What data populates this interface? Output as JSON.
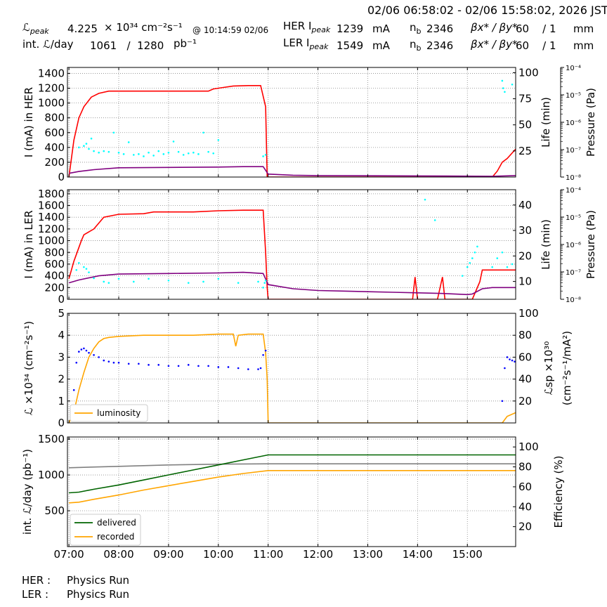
{
  "header": {
    "range": "02/06 06:58:02 - 02/06 15:58:02, 2026 JST",
    "lpeak_label": "ℒ",
    "lpeak_sub": "peak",
    "lpeak_value": "4.225",
    "lpeak_unit": "× 10³⁴ cm⁻²s⁻¹",
    "lpeak_time": "@ 10:14:59 02/06",
    "intl_label": "int. ℒ/day",
    "intl_values": "1061   /  1280",
    "intl_unit": "pb⁻¹",
    "her_label": "HER I",
    "her_sub": "peak",
    "her_value": "1239",
    "her_unit": "mA",
    "her_nb_label": "n",
    "her_nb_sub": "b",
    "her_nb_value": "2346",
    "her_beta_label": "βx* / βy*",
    "her_beta_values": "60    / 1",
    "her_beta_unit": "mm",
    "ler_label": "LER I",
    "ler_sub": "peak",
    "ler_value": "1549",
    "ler_unit": "mA",
    "ler_nb_label": "n",
    "ler_nb_sub": "b",
    "ler_nb_value": "2346",
    "ler_beta_label": "βx* / βy*",
    "ler_beta_values": "60    / 1",
    "ler_beta_unit": "mm"
  },
  "footer": {
    "her_label": "HER :",
    "her_status": "Physics Run",
    "ler_label": "LER :",
    "ler_status": "Physics Run"
  },
  "chart_data": [
    {
      "type": "line",
      "id": "her",
      "ylabel": "I (mA) in HER",
      "ylim": [
        0,
        1480
      ],
      "yticks": [
        0,
        200,
        400,
        600,
        800,
        1000,
        1200,
        1400
      ],
      "y2label": "Life (min)",
      "y2lim": [
        0,
        105
      ],
      "y2ticks": [
        25,
        50,
        75,
        100
      ],
      "y3label": "Pressure (Pa)",
      "y3ticks": [
        "10⁻⁸",
        "10⁻⁷",
        "10⁻⁶",
        "10⁻⁵",
        "10⁻⁴"
      ],
      "grid": true,
      "series": [
        {
          "axis": "y",
          "color": "#ff0000",
          "x": [
            7.0,
            7.1,
            7.2,
            7.3,
            7.45,
            7.6,
            7.8,
            8.0,
            8.5,
            9.0,
            9.5,
            9.8,
            9.9,
            10.1,
            10.3,
            10.6,
            10.85,
            10.95,
            10.97,
            10.98,
            11.0,
            12.0,
            13.0,
            14.0,
            15.0,
            15.5,
            15.6,
            15.7,
            15.8,
            16.0
          ],
          "y": [
            0,
            500,
            800,
            950,
            1080,
            1130,
            1160,
            1160,
            1160,
            1160,
            1160,
            1160,
            1190,
            1210,
            1230,
            1235,
            1235,
            950,
            300,
            0,
            0,
            0,
            0,
            0,
            0,
            0,
            80,
            200,
            250,
            400
          ]
        },
        {
          "axis": "y",
          "color": "#800080",
          "x": [
            7.0,
            7.2,
            7.5,
            8.0,
            9.0,
            10.0,
            10.5,
            10.9,
            11.0,
            11.5,
            12.0,
            14.0,
            15.5,
            16.0
          ],
          "y": [
            50,
            75,
            100,
            125,
            130,
            135,
            140,
            140,
            40,
            25,
            20,
            15,
            10,
            20
          ]
        },
        {
          "axis": "y",
          "color": "#00ffff",
          "kind": "scatter",
          "x": [
            7.2,
            7.3,
            7.35,
            7.4,
            7.45,
            7.5,
            7.6,
            7.7,
            7.8,
            7.9,
            8.0,
            8.1,
            8.2,
            8.3,
            8.4,
            8.5,
            8.6,
            8.7,
            8.8,
            8.9,
            9.0,
            9.1,
            9.2,
            9.3,
            9.4,
            9.5,
            9.6,
            9.7,
            9.8,
            9.9,
            10.0,
            10.9,
            10.95,
            15.7,
            15.72,
            15.75,
            15.9
          ],
          "y": [
            400,
            420,
            450,
            380,
            520,
            350,
            330,
            350,
            340,
            600,
            330,
            310,
            470,
            300,
            310,
            280,
            330,
            290,
            350,
            310,
            330,
            480,
            340,
            300,
            320,
            330,
            310,
            600,
            340,
            320,
            500,
            280,
            300,
            1300,
            1200,
            1150,
            1250
          ]
        }
      ]
    },
    {
      "type": "line",
      "id": "ler",
      "ylabel": "I (mA) in LER",
      "ylim": [
        0,
        1870
      ],
      "yticks": [
        0,
        200,
        400,
        600,
        800,
        1000,
        1200,
        1400,
        1600,
        1800
      ],
      "y2label": "Life (min)",
      "y2lim": [
        3,
        46
      ],
      "y2ticks": [
        10,
        20,
        30,
        40
      ],
      "y3label": "Pressure (Pa)",
      "y3ticks": [
        "10⁻⁸",
        "10⁻⁷",
        "10⁻⁶",
        "10⁻⁵",
        "10⁻⁴"
      ],
      "grid": true,
      "series": [
        {
          "axis": "y",
          "color": "#ff0000",
          "x": [
            7.0,
            7.1,
            7.25,
            7.3,
            7.5,
            7.7,
            8.0,
            8.5,
            8.7,
            9.0,
            9.5,
            10.0,
            10.5,
            10.9,
            10.95,
            10.98,
            11.0,
            13.9,
            13.95,
            14.0,
            14.05,
            14.4,
            14.5,
            14.55,
            15.1,
            15.25,
            15.3,
            15.5,
            16.0
          ],
          "y": [
            350,
            650,
            1000,
            1100,
            1200,
            1400,
            1450,
            1460,
            1490,
            1490,
            1490,
            1510,
            1520,
            1520,
            800,
            200,
            0,
            0,
            380,
            0,
            0,
            0,
            380,
            0,
            0,
            300,
            500,
            500,
            500
          ]
        },
        {
          "axis": "y",
          "color": "#800080",
          "x": [
            7.0,
            7.2,
            7.6,
            8.0,
            9.0,
            10.0,
            10.5,
            10.9,
            11.0,
            11.5,
            12.0,
            12.5,
            13.0,
            13.5,
            14.0,
            14.5,
            15.0,
            15.1,
            15.3,
            15.5,
            16.0
          ],
          "y": [
            280,
            330,
            400,
            430,
            440,
            450,
            460,
            440,
            250,
            180,
            150,
            140,
            130,
            120,
            110,
            100,
            80,
            90,
            180,
            200,
            200
          ]
        },
        {
          "axis": "y",
          "color": "#00ffff",
          "kind": "scatter",
          "x": [
            7.15,
            7.2,
            7.3,
            7.35,
            7.4,
            7.5,
            7.7,
            7.8,
            8.0,
            8.3,
            8.6,
            9.0,
            9.4,
            9.7,
            10.0,
            10.4,
            10.8,
            10.9,
            10.93,
            10.95,
            14.15,
            14.35,
            14.9,
            15.0,
            15.05,
            15.1,
            15.15,
            15.2,
            15.5,
            15.6,
            15.7,
            15.8,
            15.9
          ],
          "y": [
            500,
            620,
            550,
            520,
            460,
            360,
            300,
            280,
            350,
            300,
            350,
            320,
            280,
            300,
            350,
            280,
            300,
            200,
            280,
            320,
            1700,
            1350,
            400,
            550,
            620,
            700,
            800,
            900,
            550,
            700,
            800,
            550,
            600
          ]
        }
      ]
    },
    {
      "type": "line",
      "id": "lumi",
      "ylabel": "ℒ ×10³⁴ (cm⁻²s⁻¹)",
      "ylim": [
        0,
        5
      ],
      "yticks": [
        0,
        1,
        2,
        3,
        4,
        5
      ],
      "y2label": "ℒsp ×10³⁰",
      "y2label2": "(cm⁻²s⁻¹/mA²)",
      "y2lim": [
        0,
        100
      ],
      "y2ticks": [
        20,
        40,
        60,
        80,
        100
      ],
      "grid": true,
      "legend": {
        "position": "lower-left",
        "entries": [
          {
            "name": "luminosity",
            "color": "#ffa500"
          }
        ]
      },
      "series": [
        {
          "axis": "y",
          "color": "#ffa500",
          "name": "luminosity",
          "x": [
            7.0,
            7.1,
            7.2,
            7.3,
            7.4,
            7.5,
            7.6,
            7.7,
            7.8,
            8.0,
            8.5,
            9.0,
            9.5,
            10.0,
            10.3,
            10.35,
            10.4,
            10.6,
            10.9,
            10.95,
            10.98,
            11.0,
            12.0,
            13.0,
            14.0,
            15.0,
            15.7,
            15.8,
            16.0
          ],
          "y": [
            0,
            0.5,
            1.5,
            2.3,
            3.0,
            3.4,
            3.7,
            3.85,
            3.9,
            3.95,
            4.0,
            4.0,
            4.0,
            4.05,
            4.05,
            3.5,
            4.0,
            4.05,
            4.05,
            3.2,
            2.0,
            0,
            0,
            0,
            0,
            0,
            0,
            0.3,
            0.5
          ]
        },
        {
          "axis": "y2",
          "color": "#0000ff",
          "kind": "scatter",
          "x": [
            7.05,
            7.1,
            7.15,
            7.2,
            7.25,
            7.3,
            7.35,
            7.4,
            7.5,
            7.6,
            7.7,
            7.8,
            7.9,
            8.0,
            8.2,
            8.4,
            8.6,
            8.8,
            9.0,
            9.2,
            9.4,
            9.6,
            9.8,
            10.0,
            10.2,
            10.4,
            10.6,
            10.8,
            10.85,
            10.9,
            10.95,
            15.7,
            15.75,
            15.8,
            15.85,
            15.9,
            15.95
          ],
          "y": [
            5,
            30,
            55,
            65,
            67,
            68,
            66,
            64,
            62,
            60,
            57,
            56,
            55,
            55,
            54,
            54,
            53,
            53,
            52,
            52,
            53,
            52,
            52,
            51,
            51,
            50,
            49,
            49,
            50,
            62,
            66,
            20,
            50,
            60,
            58,
            57,
            56
          ]
        }
      ]
    },
    {
      "type": "line",
      "id": "intlumi",
      "ylabel": "int. ℒ/day (pb⁻¹)",
      "ylim": [
        0,
        1530
      ],
      "yticks": [
        500,
        1000,
        1500
      ],
      "y2label": "Efficiency (%)",
      "y2lim": [
        0,
        110
      ],
      "y2ticks": [
        20,
        40,
        60,
        80,
        100
      ],
      "xlim": [
        6.97,
        15.97
      ],
      "xticks": [
        7,
        8,
        9,
        10,
        11,
        12,
        13,
        14,
        15
      ],
      "xticklabels": [
        "07:00",
        "08:00",
        "09:00",
        "10:00",
        "11:00",
        "12:00",
        "13:00",
        "14:00",
        "15:00"
      ],
      "grid": true,
      "legend": {
        "position": "lower-left",
        "entries": [
          {
            "name": "delivered",
            "color": "#006400"
          },
          {
            "name": "recorded",
            "color": "#ffa500"
          }
        ]
      },
      "series": [
        {
          "axis": "y",
          "color": "#808080",
          "name": "efficiency",
          "x": [
            7.0,
            8.0,
            9.0,
            10.0,
            11.0,
            12.0,
            13.0,
            14.0,
            15.0,
            16.0
          ],
          "y": [
            1100,
            1120,
            1140,
            1150,
            1155,
            1155,
            1155,
            1155,
            1155,
            1155
          ]
        },
        {
          "axis": "y",
          "color": "#006400",
          "name": "delivered",
          "x": [
            7.0,
            7.2,
            7.5,
            8.0,
            8.5,
            9.0,
            9.5,
            10.0,
            10.5,
            11.0,
            12.0,
            13.0,
            14.0,
            15.0,
            16.0
          ],
          "y": [
            750,
            760,
            800,
            860,
            930,
            1000,
            1070,
            1140,
            1210,
            1280,
            1280,
            1280,
            1280,
            1280,
            1280
          ]
        },
        {
          "axis": "y",
          "color": "#ffa500",
          "name": "recorded",
          "x": [
            7.0,
            7.2,
            7.5,
            8.0,
            8.5,
            9.0,
            9.5,
            10.0,
            10.5,
            11.0,
            12.0,
            13.0,
            14.0,
            15.0,
            16.0
          ],
          "y": [
            610,
            620,
            660,
            720,
            790,
            850,
            910,
            970,
            1020,
            1061,
            1061,
            1061,
            1061,
            1061,
            1061
          ]
        }
      ]
    }
  ]
}
